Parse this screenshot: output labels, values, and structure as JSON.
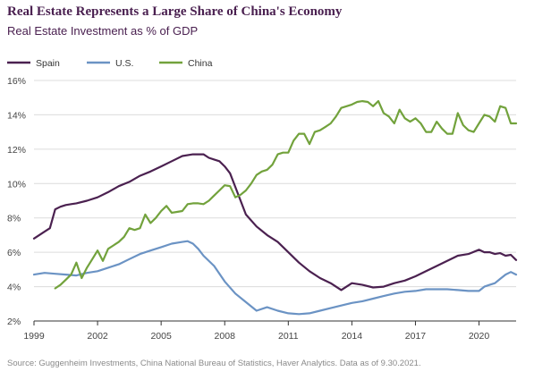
{
  "title": "Real Estate Represents a Large Share of China's Economy",
  "subtitle": "Real Estate Investment as % of GDP",
  "source": "Source: Guggenheim Investments, China National Bureau of Statistics, Haver Analytics. Data as of 9.30.2021.",
  "colors": {
    "spain": "#4b2150",
    "us": "#6b93c4",
    "china": "#72a23c",
    "grid": "#dcdcdc",
    "axis": "#333333",
    "tick_text": "#444444"
  },
  "chart_data": {
    "type": "line",
    "title": "Real Estate Represents a Large Share of China's Economy",
    "subtitle": "Real Estate Investment as % of GDP",
    "xlabel": "",
    "ylabel": "",
    "xlim": [
      1999,
      2021.75
    ],
    "ylim": [
      2,
      16
    ],
    "x_ticks": [
      1999,
      2002,
      2005,
      2008,
      2011,
      2014,
      2017,
      2020
    ],
    "y_ticks": [
      2,
      4,
      6,
      8,
      10,
      12,
      14,
      16
    ],
    "y_tick_labels": [
      "2%",
      "4%",
      "6%",
      "8%",
      "10%",
      "12%",
      "14%",
      "16%"
    ],
    "grid": "horizontal",
    "legend_position": "top-left",
    "series": [
      {
        "name": "Spain",
        "color": "#4b2150",
        "x": [
          1999,
          1999.25,
          1999.5,
          1999.75,
          2000,
          2000.25,
          2000.5,
          2000.75,
          2001,
          2001.5,
          2002,
          2002.5,
          2003,
          2003.5,
          2004,
          2004.5,
          2005,
          2005.5,
          2006,
          2006.5,
          2007,
          2007.25,
          2007.5,
          2007.75,
          2008,
          2008.25,
          2008.5,
          2008.75,
          2009,
          2009.5,
          2010,
          2010.5,
          2011,
          2011.5,
          2012,
          2012.5,
          2013,
          2013.5,
          2014,
          2014.5,
          2015,
          2015.5,
          2016,
          2016.5,
          2017,
          2017.5,
          2018,
          2018.5,
          2019,
          2019.5,
          2020,
          2020.25,
          2020.5,
          2020.75,
          2021,
          2021.25,
          2021.5,
          2021.75
        ],
        "values": [
          6.8,
          7.0,
          7.2,
          7.4,
          8.5,
          8.65,
          8.75,
          8.8,
          8.85,
          9.0,
          9.2,
          9.5,
          9.85,
          10.1,
          10.45,
          10.7,
          11.0,
          11.3,
          11.6,
          11.7,
          11.7,
          11.5,
          11.4,
          11.3,
          11.0,
          10.6,
          9.8,
          9.0,
          8.2,
          7.5,
          7.0,
          6.6,
          6.0,
          5.4,
          4.9,
          4.5,
          4.2,
          3.8,
          4.2,
          4.1,
          3.95,
          4.0,
          4.2,
          4.35,
          4.6,
          4.9,
          5.2,
          5.5,
          5.8,
          5.9,
          6.15,
          6.0,
          6.0,
          5.9,
          5.95,
          5.8,
          5.85,
          5.55
        ]
      },
      {
        "name": "U.S.",
        "color": "#6b93c4",
        "x": [
          1999,
          1999.5,
          2000,
          2000.5,
          2001,
          2001.5,
          2002,
          2002.5,
          2003,
          2003.5,
          2004,
          2004.5,
          2005,
          2005.5,
          2006,
          2006.25,
          2006.5,
          2006.75,
          2007,
          2007.5,
          2008,
          2008.5,
          2009,
          2009.5,
          2010,
          2010.5,
          2011,
          2011.5,
          2012,
          2012.5,
          2013,
          2013.5,
          2014,
          2014.5,
          2015,
          2015.5,
          2016,
          2016.5,
          2017,
          2017.5,
          2018,
          2018.5,
          2019,
          2019.5,
          2020,
          2020.25,
          2020.5,
          2020.75,
          2021,
          2021.25,
          2021.5,
          2021.75
        ],
        "values": [
          4.7,
          4.8,
          4.75,
          4.7,
          4.65,
          4.8,
          4.9,
          5.1,
          5.3,
          5.6,
          5.9,
          6.1,
          6.3,
          6.5,
          6.6,
          6.65,
          6.5,
          6.2,
          5.8,
          5.2,
          4.3,
          3.6,
          3.1,
          2.6,
          2.8,
          2.6,
          2.45,
          2.4,
          2.45,
          2.6,
          2.75,
          2.9,
          3.05,
          3.15,
          3.3,
          3.45,
          3.6,
          3.7,
          3.75,
          3.85,
          3.85,
          3.85,
          3.8,
          3.75,
          3.75,
          4.0,
          4.1,
          4.2,
          4.45,
          4.7,
          4.85,
          4.7
        ]
      },
      {
        "name": "China",
        "color": "#72a23c",
        "x": [
          2000,
          2000.25,
          2000.5,
          2000.75,
          2001,
          2001.25,
          2001.5,
          2001.75,
          2002,
          2002.25,
          2002.5,
          2002.75,
          2003,
          2003.25,
          2003.5,
          2003.75,
          2004,
          2004.25,
          2004.5,
          2004.75,
          2005,
          2005.25,
          2005.5,
          2005.75,
          2006,
          2006.25,
          2006.5,
          2006.75,
          2007,
          2007.25,
          2007.5,
          2007.75,
          2008,
          2008.25,
          2008.5,
          2008.75,
          2009,
          2009.25,
          2009.5,
          2009.75,
          2010,
          2010.25,
          2010.5,
          2010.75,
          2011,
          2011.25,
          2011.5,
          2011.75,
          2012,
          2012.25,
          2012.5,
          2012.75,
          2013,
          2013.25,
          2013.5,
          2013.75,
          2014,
          2014.25,
          2014.5,
          2014.75,
          2015,
          2015.25,
          2015.5,
          2015.75,
          2016,
          2016.25,
          2016.5,
          2016.75,
          2017,
          2017.25,
          2017.5,
          2017.75,
          2018,
          2018.25,
          2018.5,
          2018.75,
          2019,
          2019.25,
          2019.5,
          2019.75,
          2020,
          2020.25,
          2020.5,
          2020.75,
          2021,
          2021.25,
          2021.5,
          2021.75
        ],
        "values": [
          3.9,
          4.1,
          4.4,
          4.7,
          5.4,
          4.5,
          5.1,
          5.6,
          6.1,
          5.5,
          6.2,
          6.4,
          6.6,
          6.9,
          7.4,
          7.3,
          7.4,
          8.2,
          7.7,
          8.0,
          8.4,
          8.7,
          8.3,
          8.35,
          8.4,
          8.8,
          8.85,
          8.85,
          8.8,
          9.0,
          9.3,
          9.6,
          9.9,
          9.85,
          9.2,
          9.35,
          9.6,
          10.0,
          10.5,
          10.7,
          10.8,
          11.1,
          11.7,
          11.8,
          11.8,
          12.5,
          12.9,
          12.9,
          12.3,
          13.0,
          13.1,
          13.3,
          13.5,
          13.9,
          14.4,
          14.5,
          14.6,
          14.75,
          14.8,
          14.75,
          14.5,
          14.8,
          14.1,
          13.9,
          13.5,
          14.3,
          13.8,
          13.6,
          13.8,
          13.5,
          13.0,
          13.0,
          13.6,
          13.2,
          12.9,
          12.9,
          14.1,
          13.4,
          13.1,
          13.0,
          13.5,
          14.0,
          13.9,
          13.6,
          14.5,
          14.4,
          13.5,
          13.5
        ]
      }
    ]
  }
}
